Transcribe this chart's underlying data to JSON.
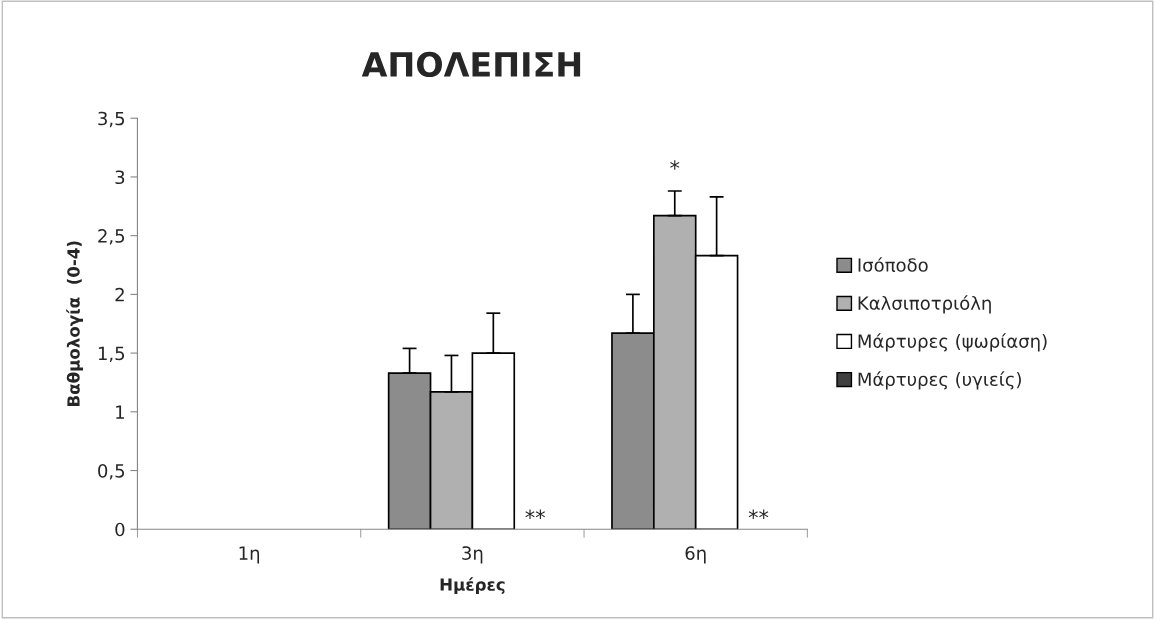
{
  "chart_data": {
    "type": "bar",
    "title": "ΑΠΟΛΕΠΙΣΗ",
    "xlabel": "Ημέρες",
    "ylabel": "Βαθμολογία  (0-4)",
    "categories": [
      "1η",
      "3η",
      "6η"
    ],
    "series": [
      {
        "name": "Ισόποδο",
        "color": "#8c8c8c",
        "values": [
          0,
          1.33,
          1.67
        ],
        "errors": [
          null,
          [
            1.33,
            1.54
          ],
          [
            1.67,
            2.0
          ]
        ]
      },
      {
        "name": "Καλσιποτριόλη",
        "color": "#b0b0b0",
        "values": [
          0,
          1.17,
          2.67
        ],
        "errors": [
          null,
          [
            1.17,
            1.48
          ],
          [
            2.67,
            2.88
          ]
        ]
      },
      {
        "name": "Μάρτυρες (ψωρίαση)",
        "color": "#ffffff",
        "values": [
          0,
          1.5,
          2.33
        ],
        "errors": [
          null,
          [
            1.5,
            1.84
          ],
          [
            2.33,
            2.83
          ]
        ]
      },
      {
        "name": "Μάρτυρες (υγιείς)",
        "color": "#404040",
        "values": [
          0,
          0,
          0
        ]
      }
    ],
    "ylim": [
      0,
      3.5
    ],
    "yticks": [
      0,
      {
        "value": 0.5,
        "label": "0,5"
      },
      1,
      {
        "value": 1.5,
        "label": "1,5"
      },
      2,
      {
        "value": 2.5,
        "label": "2,5"
      },
      3,
      {
        "value": 3.5,
        "label": "3,5"
      }
    ],
    "annotations": [
      {
        "text": "*",
        "x": "6η",
        "y": 2.67
      },
      {
        "text": "**",
        "x": "3η",
        "y": 0.0
      },
      {
        "text": "**",
        "x": "6η",
        "y": 0.0
      }
    ],
    "legend": "right",
    "grid": false
  }
}
